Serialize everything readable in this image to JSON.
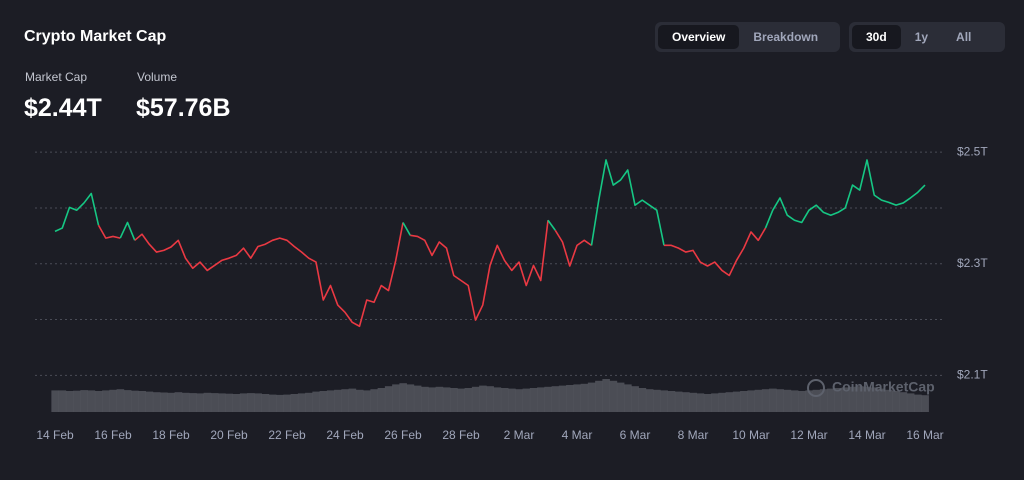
{
  "header": {
    "title": "Crypto Market Cap",
    "view_tabs": [
      "Overview",
      "Breakdown"
    ],
    "active_view": 0,
    "range_tabs": [
      "30d",
      "1y",
      "All"
    ],
    "active_range": 0
  },
  "stats": [
    {
      "label": "Market Cap",
      "value": "$2.44T"
    },
    {
      "label": "Volume",
      "value": "$57.76B"
    }
  ],
  "chart_data": {
    "type": "line",
    "watermark": "CoinMarketCap",
    "categories": [
      "14 Feb",
      null,
      null,
      null,
      null,
      null,
      null,
      null,
      "16 Feb",
      null,
      null,
      null,
      null,
      null,
      null,
      null,
      "18 Feb",
      null,
      null,
      null,
      null,
      null,
      null,
      null,
      "20 Feb",
      null,
      null,
      null,
      null,
      null,
      null,
      null,
      "22 Feb",
      null,
      null,
      null,
      null,
      null,
      null,
      null,
      "24 Feb",
      null,
      null,
      null,
      null,
      null,
      null,
      null,
      "26 Feb",
      null,
      null,
      null,
      null,
      null,
      null,
      null,
      "28 Feb",
      null,
      null,
      null,
      null,
      null,
      null,
      null,
      "2 Mar",
      null,
      null,
      null,
      null,
      null,
      null,
      null,
      "4 Mar",
      null,
      null,
      null,
      null,
      null,
      null,
      null,
      "6 Mar",
      null,
      null,
      null,
      null,
      null,
      null,
      null,
      "8 Mar",
      null,
      null,
      null,
      null,
      null,
      null,
      null,
      "10 Mar",
      null,
      null,
      null,
      null,
      null,
      null,
      null,
      "12 Mar",
      null,
      null,
      null,
      null,
      null,
      null,
      null,
      "14 Mar",
      null,
      null,
      null,
      null,
      null,
      null,
      null,
      "16 Mar"
    ],
    "series": [
      {
        "name": "Market Cap",
        "up_color": "#16c784",
        "down_color": "#ea3943",
        "values": [
          2.358,
          2.364,
          2.401,
          2.396,
          2.409,
          2.426,
          2.369,
          2.346,
          2.349,
          2.346,
          2.374,
          2.342,
          2.353,
          2.335,
          2.321,
          2.324,
          2.33,
          2.342,
          2.31,
          2.292,
          2.303,
          2.288,
          2.297,
          2.306,
          2.31,
          2.315,
          2.328,
          2.31,
          2.331,
          2.335,
          2.342,
          2.346,
          2.342,
          2.331,
          2.321,
          2.31,
          2.303,
          2.235,
          2.261,
          2.226,
          2.213,
          2.195,
          2.188,
          2.235,
          2.231,
          2.261,
          2.252,
          2.306,
          2.374,
          2.351,
          2.349,
          2.342,
          2.315,
          2.339,
          2.328,
          2.279,
          2.27,
          2.261,
          2.199,
          2.226,
          2.297,
          2.333,
          2.306,
          2.288,
          2.303,
          2.261,
          2.297,
          2.27,
          2.378,
          2.36,
          2.339,
          2.296,
          2.333,
          2.342,
          2.333,
          2.414,
          2.486,
          2.441,
          2.45,
          2.468,
          2.405,
          2.414,
          2.405,
          2.396,
          2.333,
          2.333,
          2.328,
          2.321,
          2.324,
          2.303,
          2.296,
          2.303,
          2.288,
          2.279,
          2.306,
          2.328,
          2.357,
          2.342,
          2.364,
          2.396,
          2.418,
          2.387,
          2.378,
          2.374,
          2.396,
          2.405,
          2.392,
          2.387,
          2.392,
          2.4,
          2.441,
          2.432,
          2.486,
          2.423,
          2.414,
          2.41,
          2.405,
          2.409,
          2.418,
          2.428,
          2.441
        ]
      },
      {
        "name": "Volume",
        "axis": "y2",
        "color": "#5b5d66",
        "values": [
          72,
          72,
          70,
          71,
          73,
          72,
          70,
          72,
          74,
          76,
          73,
          71,
          70,
          68,
          66,
          65,
          64,
          66,
          64,
          63,
          62,
          64,
          63,
          62,
          61,
          60,
          62,
          63,
          62,
          60,
          58,
          57,
          58,
          60,
          62,
          64,
          68,
          70,
          72,
          74,
          76,
          78,
          74,
          72,
          76,
          80,
          86,
          92,
          96,
          92,
          88,
          84,
          82,
          84,
          82,
          80,
          78,
          80,
          84,
          88,
          86,
          82,
          80,
          78,
          76,
          78,
          80,
          82,
          84,
          86,
          88,
          90,
          92,
          94,
          98,
          104,
          110,
          104,
          98,
          92,
          86,
          80,
          76,
          74,
          72,
          70,
          68,
          66,
          64,
          62,
          60,
          62,
          64,
          66,
          68,
          70,
          72,
          74,
          76,
          78,
          76,
          74,
          72,
          70,
          72,
          74,
          76,
          78,
          80,
          82,
          84,
          86,
          84,
          82,
          78,
          74,
          70,
          66,
          62,
          58,
          56
        ]
      }
    ],
    "ylim": [
      2.02,
      2.52
    ],
    "y2lim": [
      0,
      200
    ],
    "yticks": [
      {
        "value": 2.1,
        "label": "$2.1T"
      },
      {
        "value": 2.3,
        "label": "$2.3T"
      },
      {
        "value": 2.5,
        "label": "$2.5T"
      }
    ],
    "minor_yticks": [
      2.2,
      2.4
    ],
    "grid": true
  }
}
